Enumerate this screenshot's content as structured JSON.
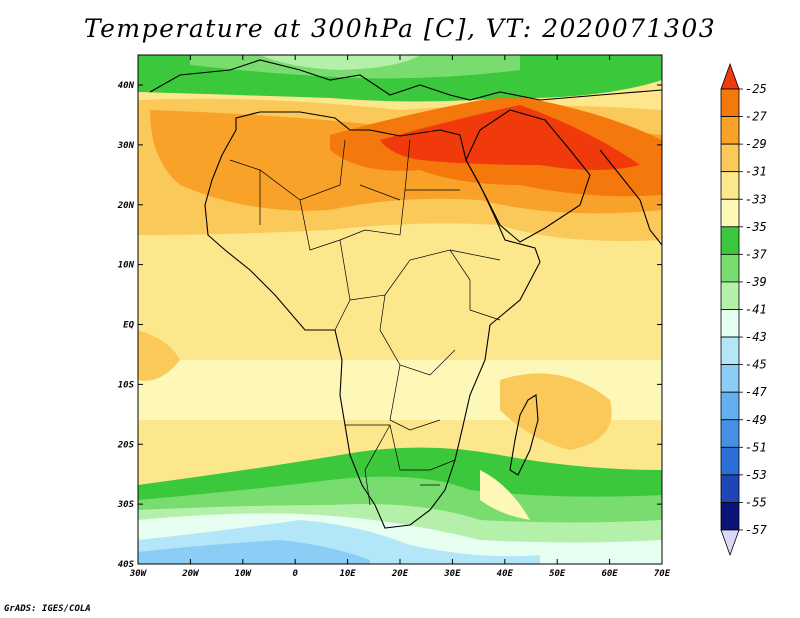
{
  "title": "Temperature at 300hPa [C], VT: 2020071303",
  "credit": "GrADS: IGES/COLA",
  "map": {
    "lon_labels": [
      "30W",
      "20W",
      "10W",
      "0",
      "10E",
      "20E",
      "30E",
      "40E",
      "50E",
      "60E",
      "70E"
    ],
    "lat_labels": [
      "40N",
      "30N",
      "20N",
      "10N",
      "EQ",
      "10S",
      "20S",
      "30S",
      "40S"
    ],
    "colorbar": {
      "labels": [
        "-25",
        "-27",
        "-29",
        "-31",
        "-33",
        "-35",
        "-37",
        "-39",
        "-41",
        "-43",
        "-45",
        "-47",
        "-49",
        "-51",
        "-53",
        "-55",
        "-57"
      ],
      "colors": [
        "#f03a0c",
        "#f5780c",
        "#f8a22a",
        "#fbc85a",
        "#fde78c",
        "#fdf7b8",
        "#3cc83c",
        "#78dc6e",
        "#b4f0aa",
        "#e6fff0",
        "#b4e6fa",
        "#8ccdf5",
        "#64aff0",
        "#4691e6",
        "#2c6ed7",
        "#1e46b4",
        "#0a1478",
        "#d8d8f8"
      ]
    }
  }
}
